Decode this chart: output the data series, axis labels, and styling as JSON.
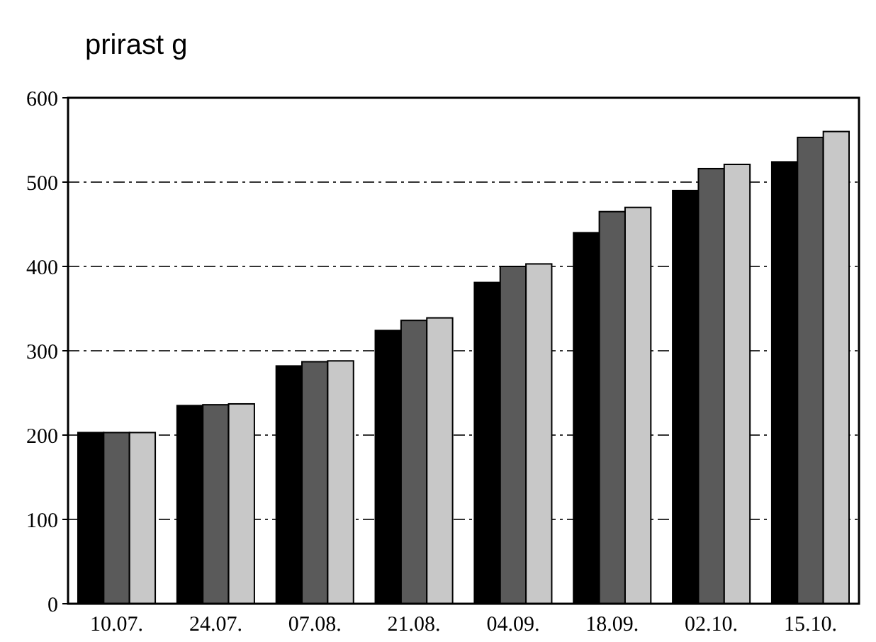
{
  "chart_data": {
    "type": "bar",
    "title": "prirast g",
    "categories": [
      "10.07.",
      "24.07.",
      "07.08.",
      "21.08.",
      "04.09.",
      "18.09.",
      "02.10.",
      "15.10."
    ],
    "series": [
      {
        "color": "#000000",
        "values": [
          203,
          235,
          282,
          324,
          381,
          440,
          490,
          524
        ]
      },
      {
        "color": "#5a5a5a",
        "values": [
          203,
          236,
          287,
          336,
          400,
          465,
          516,
          553
        ]
      },
      {
        "color": "#c8c8c8",
        "values": [
          203,
          237,
          288,
          339,
          403,
          470,
          521,
          560
        ]
      }
    ],
    "ylim": [
      0,
      600
    ],
    "yticks": [
      0,
      100,
      200,
      300,
      400,
      500,
      600
    ],
    "grid": "y"
  }
}
